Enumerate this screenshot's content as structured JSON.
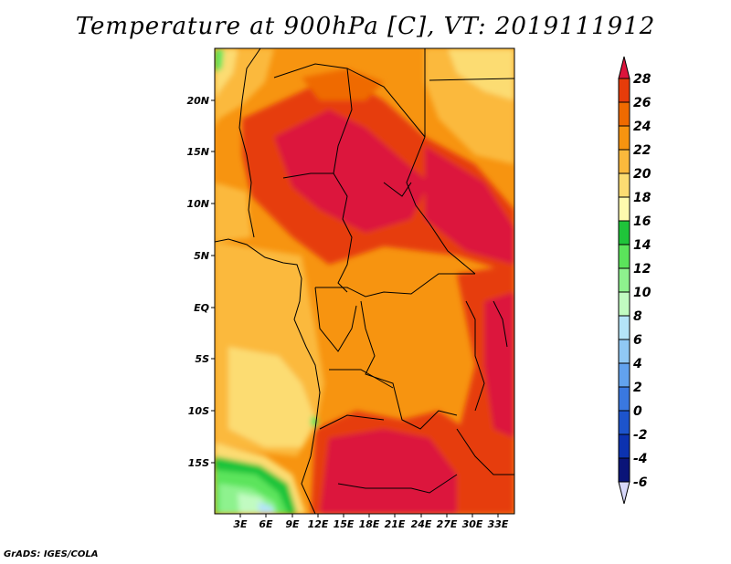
{
  "title": "Temperature at 900hPa [C], VT: 2019111912",
  "credit": "GrADS: IGES/COLA",
  "lat_ticks": [
    "20N",
    "15N",
    "10N",
    "5N",
    "EQ",
    "5S",
    "10S",
    "15S"
  ],
  "lon_ticks": [
    "3E",
    "6E",
    "9E",
    "12E",
    "15E",
    "18E",
    "21E",
    "24E",
    "27E",
    "30E",
    "33E"
  ],
  "colorbar": {
    "labels": [
      "28",
      "26",
      "24",
      "22",
      "20",
      "18",
      "16",
      "14",
      "12",
      "10",
      "8",
      "6",
      "4",
      "2",
      "0",
      "-2",
      "-4",
      "-6"
    ],
    "colors": [
      "#dc143c",
      "#e63c0a",
      "#ef6a00",
      "#f79410",
      "#fbb93c",
      "#fcdc72",
      "#fefaae",
      "#1fc43a",
      "#5be45b",
      "#8ef28e",
      "#c1fbc1",
      "#b4e4f8",
      "#90c8f4",
      "#62a2ee",
      "#3a78e0",
      "#1d54cc",
      "#0c32b0",
      "#0a1478",
      "#d8d8fa"
    ]
  }
}
